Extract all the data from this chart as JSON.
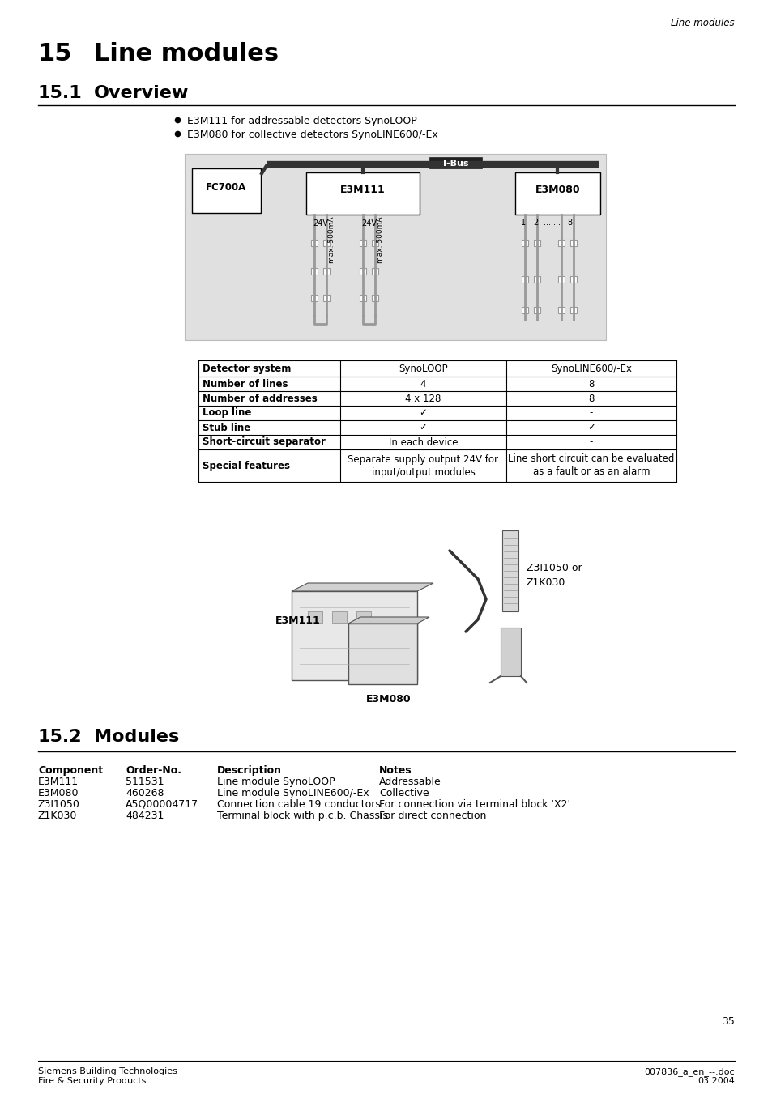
{
  "header_italic": "Line modules",
  "section1_num": "15",
  "section1_title": "Line modules",
  "section2_num": "15.1",
  "section2_title": "Overview",
  "section3_num": "15.2",
  "section3_title": "Modules",
  "bullets": [
    "E3M111 for addressable detectors SynoLOOP",
    "E3M080 for collective detectors SynoLINE600/-Ex"
  ],
  "table_rows": [
    [
      "Detector system",
      "SynoLOOP",
      "SynoLINE600/-Ex"
    ],
    [
      "Number of lines",
      "4",
      "8"
    ],
    [
      "Number of addresses",
      "4 x 128",
      "8"
    ],
    [
      "Loop line",
      "✓",
      "-"
    ],
    [
      "Stub line",
      "✓",
      "✓"
    ],
    [
      "Short-circuit separator",
      "In each device",
      "-"
    ],
    [
      "Special features",
      "Separate supply output 24V for\ninput/output modules",
      "Line short circuit can be evaluated\nas a fault or as an alarm"
    ]
  ],
  "modules_headers": [
    "Component",
    "Order-No.",
    "Description",
    "Notes"
  ],
  "modules_rows": [
    [
      "E3M111",
      "511531",
      "Line module SynoLOOP",
      "Addressable"
    ],
    [
      "E3M080",
      "460268",
      "Line module SynoLINE600/-Ex",
      "Collective"
    ],
    [
      "Z3I1050",
      "A5Q00004717",
      "Connection cable 19 conductors",
      "For connection via terminal block 'X2'"
    ],
    [
      "Z1K030",
      "484231",
      "Terminal block with p.c.b. Chassis",
      "For direct connection"
    ]
  ],
  "footer_left1": "Siemens Building Technologies",
  "footer_left2": "Fire & Security Products",
  "footer_right1": "007836_a_en_--.doc",
  "footer_right2": "03.2004",
  "page_number": "35",
  "bg_color": "#ffffff",
  "gray_bg": "#e0e0e0",
  "dark_gray": "#888888",
  "line_gray": "#999999"
}
